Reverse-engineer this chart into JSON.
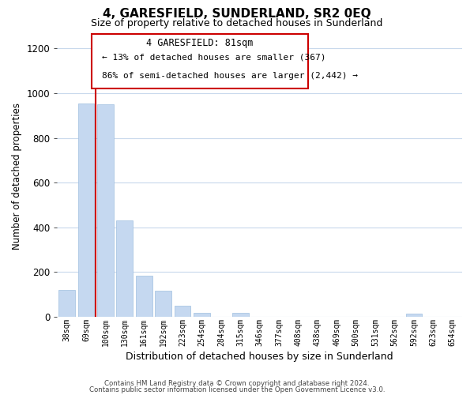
{
  "title": "4, GARESFIELD, SUNDERLAND, SR2 0EQ",
  "subtitle": "Size of property relative to detached houses in Sunderland",
  "xlabel": "Distribution of detached houses by size in Sunderland",
  "ylabel": "Number of detached properties",
  "categories": [
    "38sqm",
    "69sqm",
    "100sqm",
    "130sqm",
    "161sqm",
    "192sqm",
    "223sqm",
    "254sqm",
    "284sqm",
    "315sqm",
    "346sqm",
    "377sqm",
    "408sqm",
    "438sqm",
    "469sqm",
    "500sqm",
    "531sqm",
    "562sqm",
    "592sqm",
    "623sqm",
    "654sqm"
  ],
  "values": [
    120,
    955,
    950,
    430,
    185,
    115,
    48,
    18,
    0,
    18,
    0,
    0,
    0,
    0,
    0,
    0,
    0,
    0,
    15,
    0,
    0
  ],
  "bar_color": "#c5d8f0",
  "bar_edge_color": "#a0bfe0",
  "marker_color": "#cc0000",
  "marker_label": "4 GARESFIELD: 81sqm",
  "annotation_line1": "← 13% of detached houses are smaller (367)",
  "annotation_line2": "86% of semi-detached houses are larger (2,442) →",
  "ylim": [
    0,
    1260
  ],
  "yticks": [
    0,
    200,
    400,
    600,
    800,
    1000,
    1200
  ],
  "footer_line1": "Contains HM Land Registry data © Crown copyright and database right 2024.",
  "footer_line2": "Contains public sector information licensed under the Open Government Licence v3.0.",
  "background_color": "#ffffff",
  "grid_color": "#c8d8ec"
}
